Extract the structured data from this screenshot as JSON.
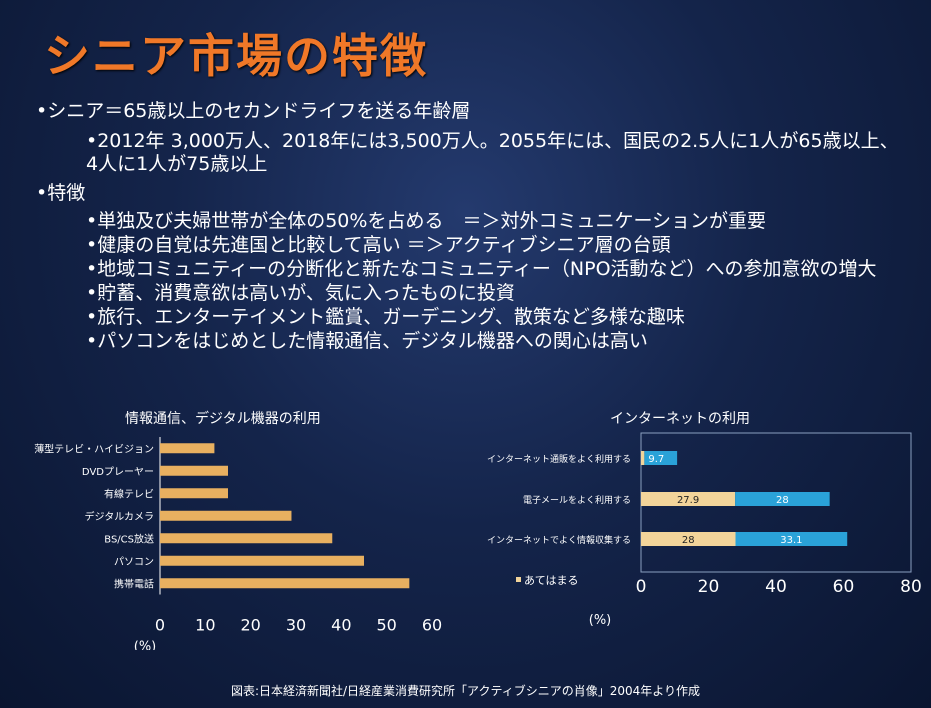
{
  "slide": {
    "title": "シニア市場の特徴",
    "bullets": [
      {
        "level": 1,
        "text": "•シニア＝65歳以上のセカンドライフを送る年齢層"
      },
      {
        "level": 2,
        "text": "•2012年 3,000万人、2018年には3,500万人。2055年には、国民の2.5人に1人が65歳以上、4人に1人が75歳以上"
      },
      {
        "level": 1,
        "text": "•特徴"
      },
      {
        "level": 2,
        "text": "•単独及び夫婦世帯が全体の50%を占める　＝＞対外コミュニケーションが重要"
      },
      {
        "level": 2,
        "text": "•健康の自覚は先進国と比較して高い ＝＞アクティブシニア層の台頭"
      },
      {
        "level": 2,
        "text": "•地域コミュニティーの分断化と新たなコミュニティー（NPO活動など）への参加意欲の増大"
      },
      {
        "level": 2,
        "text": "•貯蓄、消費意欲は高いが、気に入ったものに投資"
      },
      {
        "level": 2,
        "text": "•旅行、エンターテイメント鑑賞、ガーデニング、散策など多様な趣味"
      },
      {
        "level": 2,
        "text": "•パソコンをはじめとした情報通信、デジタル機器への関心は高い"
      }
    ],
    "source": "図表:日本経済新聞社/日経産業消費研究所「アクティブシニアの肖像」2004年より作成"
  },
  "chart_data": [
    {
      "type": "bar",
      "orientation": "horizontal",
      "title": "情報通信、デジタル機器の利用",
      "categories": [
        "薄型テレビ・ハイビジョン",
        "DVDプレーヤー",
        "有線テレビ",
        "デジタルカメラ",
        "BS/CS放送",
        "パソコン",
        "携帯電話"
      ],
      "values": [
        12,
        15,
        15,
        29,
        38,
        45,
        55
      ],
      "xlim": [
        0,
        60
      ],
      "xticks": [
        "0",
        "10",
        "20",
        "30",
        "40",
        "50",
        "60"
      ],
      "unit": "(%)",
      "colors": {
        "bar": "#e8b060"
      }
    },
    {
      "type": "bar",
      "orientation": "horizontal",
      "stacked": true,
      "title": "インターネットの利用",
      "categories": [
        "インターネット通販をよく利用する",
        "電子メールをよく利用する",
        "インターネットでよく情報収集する"
      ],
      "series": [
        {
          "name": "あてはまる",
          "values": [
            1,
            27.9,
            28
          ],
          "labels": [
            "",
            "27.9",
            "28"
          ],
          "color": "#f2d49a"
        },
        {
          "values": [
            9.7,
            28,
            33.1
          ],
          "labels": [
            "9.7",
            "28",
            "33.1"
          ],
          "color": "#2aa2d8"
        }
      ],
      "xlim": [
        0,
        80
      ],
      "xticks": [
        "0",
        "20",
        "40",
        "60",
        "80"
      ],
      "unit": "(%)",
      "legend": {
        "label": "あてはまる",
        "position": "bottom-left"
      }
    }
  ]
}
